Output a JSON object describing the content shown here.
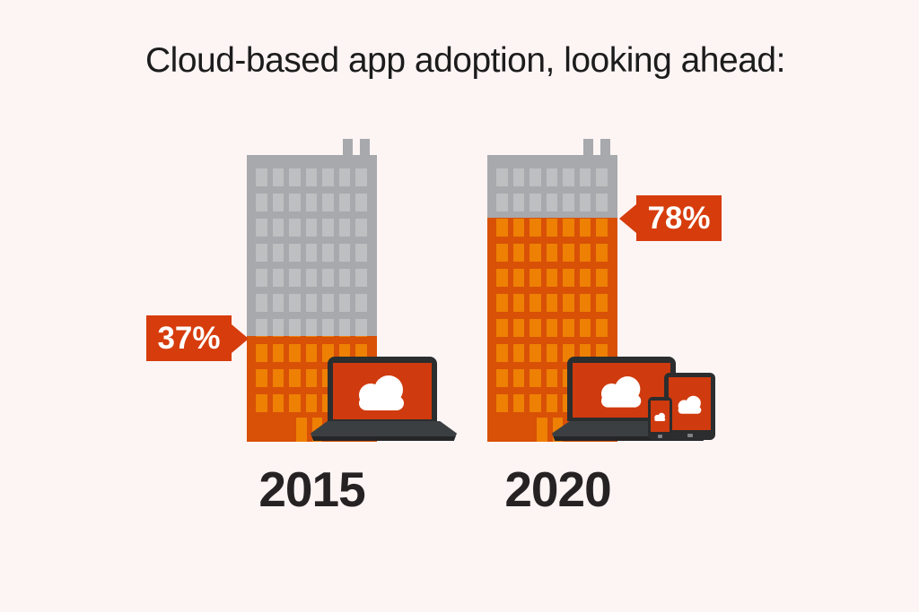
{
  "title": "Cloud-based app adoption, looking ahead:",
  "chart_data": {
    "type": "bar",
    "style": "pictorial-infographic (building fill level = percentage)",
    "title": "Cloud-based app adoption, looking ahead:",
    "categories": [
      "2015",
      "2020"
    ],
    "values": [
      37,
      78
    ],
    "unit": "%",
    "value_labels": [
      "37%",
      "78%"
    ],
    "ylim": [
      0,
      100
    ],
    "legend": "none",
    "grid": false
  },
  "buildings": [
    {
      "year": "2015",
      "value": 37,
      "label": "37%",
      "devices": [
        "laptop-with-cloud"
      ]
    },
    {
      "year": "2020",
      "value": 78,
      "label": "78%",
      "devices": [
        "laptop-with-cloud",
        "tablet-with-cloud",
        "phone-with-cloud"
      ]
    }
  ],
  "icons": {
    "cloud": "cloud-icon",
    "laptop": "laptop-icon",
    "tablet": "tablet-icon",
    "phone": "phone-icon",
    "building": "building-icon"
  },
  "colors": {
    "background": "#fdf4f4",
    "building_gray": "#a7a9ac",
    "building_gray_window": "#bdbfc1",
    "building_orange": "#d85107",
    "building_orange_window": "#ee8004",
    "callout_background": "#d63c0c",
    "callout_text": "#ffffff",
    "device_frame": "#2b2d2e",
    "device_screen": "#cf3b0e",
    "laptop_base": "#3c3f41",
    "cloud": "#ffffff",
    "title_text": "#1c1c1c",
    "year_text": "#262223"
  }
}
